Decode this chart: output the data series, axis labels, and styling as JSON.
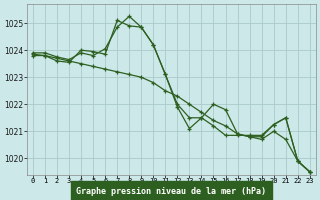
{
  "title": "Graphe pression niveau de la mer (hPa)",
  "background_color": "#cce8e8",
  "plot_bg_color": "#cce8e8",
  "grid_color": "#aacaca",
  "line_color": "#2d6020",
  "xlabel_bg": "#2d6020",
  "xlabel_fg": "#ffffff",
  "x_ticks": [
    0,
    1,
    2,
    3,
    4,
    5,
    6,
    7,
    8,
    9,
    10,
    11,
    12,
    13,
    14,
    15,
    16,
    17,
    18,
    19,
    20,
    21,
    22,
    23
  ],
  "ylim": [
    1019.4,
    1025.7
  ],
  "yticks": [
    1020,
    1021,
    1022,
    1023,
    1024,
    1025
  ],
  "series": [
    [
      1023.8,
      1023.8,
      1023.7,
      1023.6,
      1023.5,
      1023.4,
      1023.3,
      1023.2,
      1023.1,
      1023.0,
      1022.8,
      1022.5,
      1022.3,
      1022.0,
      1021.7,
      1021.4,
      1021.2,
      1020.9,
      1020.8,
      1020.7,
      1021.0,
      1020.7,
      1019.9,
      1019.5
    ],
    [
      1023.85,
      1023.8,
      1023.6,
      1023.55,
      1024.0,
      1023.95,
      1023.85,
      1025.1,
      1024.9,
      1024.85,
      1024.2,
      1023.1,
      1022.0,
      1021.5,
      1021.5,
      1022.0,
      1021.8,
      1020.9,
      1020.8,
      1020.8,
      1021.25,
      1021.5,
      1019.9,
      1019.5
    ],
    [
      1023.9,
      1023.9,
      1023.75,
      1023.65,
      1023.9,
      1023.8,
      1024.05,
      1024.85,
      1025.25,
      1024.85,
      1024.2,
      1023.1,
      1021.9,
      1021.1,
      1021.5,
      1021.2,
      1020.85,
      1020.85,
      1020.85,
      1020.85,
      1021.25,
      1021.5,
      1019.9,
      1019.5
    ]
  ]
}
